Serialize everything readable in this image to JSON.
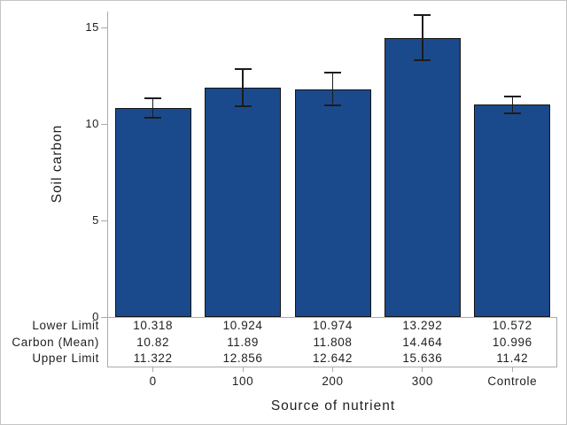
{
  "chart_data": {
    "type": "bar",
    "title": "",
    "xlabel": "Source of nutrient",
    "ylabel": "Soil carbon",
    "categories": [
      "0",
      "100",
      "200",
      "300",
      "Controle"
    ],
    "series": [
      {
        "name": "Carbon (Mean)",
        "values": [
          10.82,
          11.89,
          11.808,
          14.464,
          10.996
        ]
      }
    ],
    "error_bars": {
      "lower": [
        10.318,
        10.924,
        10.974,
        13.292,
        10.572
      ],
      "upper": [
        11.322,
        12.856,
        12.642,
        15.636,
        11.42
      ]
    },
    "yticks": [
      "0",
      "5",
      "10",
      "15"
    ],
    "ylim": [
      0,
      15.8
    ],
    "grid": false,
    "legend": "none",
    "colors": {
      "bar_fill": "#1B4A8C",
      "bar_border": "#141414",
      "error_bar": "#1C1C1C",
      "axis_line": "#ABABAB",
      "text": "#1F1F1F",
      "frame_border": "#C4C4C4"
    }
  },
  "stat_table": {
    "row_labels": [
      "Lower Limit",
      "Carbon (Mean)",
      "Upper Limit"
    ],
    "rows": [
      [
        "10.318",
        "10.924",
        "10.974",
        "13.292",
        "10.572"
      ],
      [
        "10.82",
        "11.89",
        "11.808",
        "14.464",
        "10.996"
      ],
      [
        "11.322",
        "12.856",
        "12.642",
        "15.636",
        "11.42"
      ]
    ]
  }
}
